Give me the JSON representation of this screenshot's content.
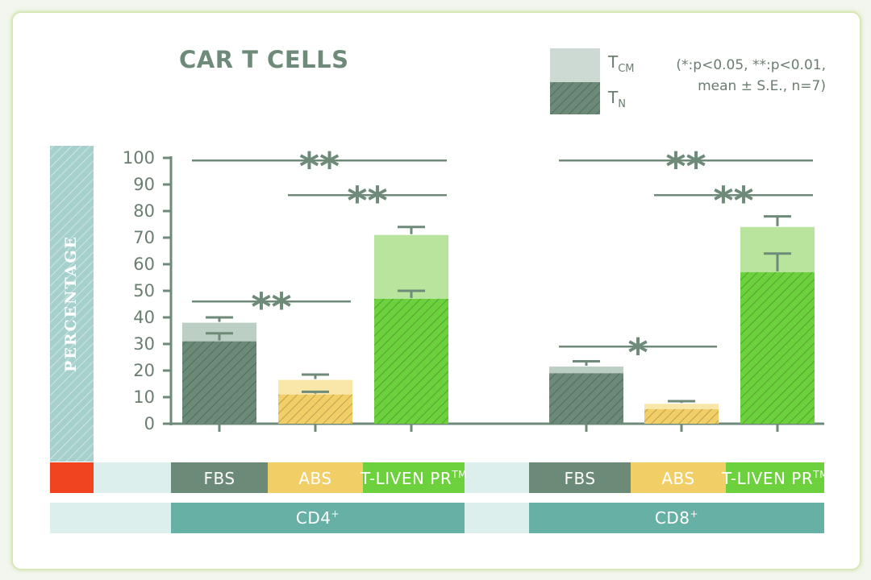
{
  "chart_data": {
    "type": "bar",
    "stacked": true,
    "title": "CAR T CELLS",
    "ylabel": "PERCENTAGE",
    "ylim": [
      0,
      100
    ],
    "yticks": [
      0,
      10,
      20,
      30,
      40,
      50,
      60,
      70,
      80,
      90,
      100
    ],
    "note_lines": [
      "(*:p<0.05, **:p<0.01,",
      "mean ± S.E., n=7)"
    ],
    "legend": [
      {
        "key": "tcm",
        "main": "T",
        "sub": "CM"
      },
      {
        "key": "tn",
        "main": "T",
        "sub": "N"
      }
    ],
    "groups": [
      {
        "label": "CD4",
        "sup": "+"
      },
      {
        "label": "CD8",
        "sup": "+"
      }
    ],
    "conditions": [
      {
        "key": "fbs",
        "label": "FBS",
        "sup": "",
        "color": "#6b8a78",
        "light": "#bccfc4"
      },
      {
        "key": "abs",
        "label": "ABS",
        "sup": "",
        "color": "#f2cf66",
        "light": "#f8e7a8"
      },
      {
        "key": "tliven",
        "label": "T-LIVEN PR",
        "sup": "TM",
        "color": "#6cd13c",
        "light": "#b8e49d"
      }
    ],
    "bars": [
      {
        "group": "CD4",
        "condition": "FBS",
        "tn": 31,
        "tn_se": 3,
        "total": 38,
        "total_se": 2
      },
      {
        "group": "CD4",
        "condition": "ABS",
        "tn": 11,
        "tn_se": 1,
        "total": 16.5,
        "total_se": 2
      },
      {
        "group": "CD4",
        "condition": "T-LIVEN PR",
        "tn": 47,
        "tn_se": 3,
        "total": 71,
        "total_se": 3
      },
      {
        "group": "CD8",
        "condition": "FBS",
        "tn": 19,
        "tn_se": 0,
        "total": 21.5,
        "total_se": 2
      },
      {
        "group": "CD8",
        "condition": "ABS",
        "tn": 5.5,
        "tn_se": 0,
        "total": 7.5,
        "total_se": 1
      },
      {
        "group": "CD8",
        "condition": "T-LIVEN PR",
        "tn": 57,
        "tn_se": 7,
        "total": 74,
        "total_se": 4
      }
    ],
    "significance": [
      {
        "group": "CD4",
        "from": "FBS",
        "to": "T-LIVEN PR",
        "y": 99,
        "label": "**"
      },
      {
        "group": "CD4",
        "from": "ABS",
        "to": "T-LIVEN PR",
        "y": 86,
        "label": "**"
      },
      {
        "group": "CD4",
        "from": "FBS",
        "to": "ABS",
        "y": 46,
        "label": "**"
      },
      {
        "group": "CD8",
        "from": "FBS",
        "to": "T-LIVEN PR",
        "y": 99,
        "label": "**"
      },
      {
        "group": "CD8",
        "from": "ABS",
        "to": "T-LIVEN PR",
        "y": 86,
        "label": "**"
      },
      {
        "group": "CD8",
        "from": "FBS",
        "to": "ABS",
        "y": 29,
        "label": "*"
      }
    ],
    "colors": {
      "axis": "#6e8a78",
      "sig_line": "#6e8a78",
      "ylabel_band": "#a6d0cc",
      "group_band": "#67b0a5",
      "light_band": "#dcefed",
      "accent": "#f0431f"
    }
  }
}
